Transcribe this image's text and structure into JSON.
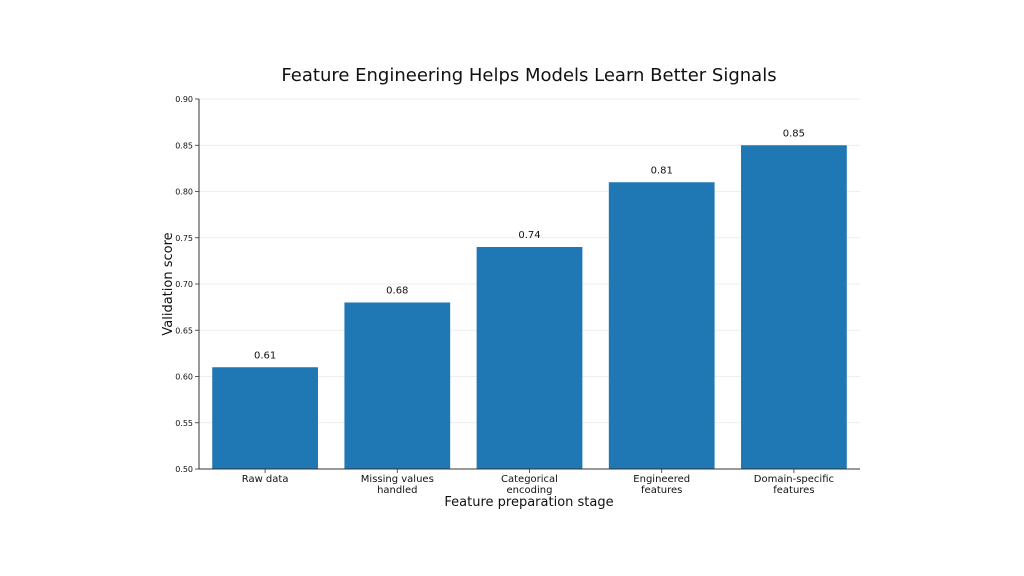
{
  "chart_data": {
    "type": "bar",
    "title": "Feature Engineering Helps Models Learn Better Signals",
    "xlabel": "Feature preparation stage",
    "ylabel": "Validation score",
    "categories": [
      [
        "Raw data"
      ],
      [
        "Missing values",
        "handled"
      ],
      [
        "Categorical",
        "encoding"
      ],
      [
        "Engineered",
        "features"
      ],
      [
        "Domain-specific",
        "features"
      ]
    ],
    "values": [
      0.61,
      0.68,
      0.74,
      0.81,
      0.85
    ],
    "value_labels": [
      "0.61",
      "0.68",
      "0.74",
      "0.81",
      "0.85"
    ],
    "ylim": [
      0.5,
      0.9
    ],
    "yticks": [
      "0.50",
      "0.55",
      "0.60",
      "0.65",
      "0.70",
      "0.75",
      "0.80",
      "0.85",
      "0.90"
    ],
    "grid": "horizontal",
    "bar_color": "#1f77b4"
  }
}
